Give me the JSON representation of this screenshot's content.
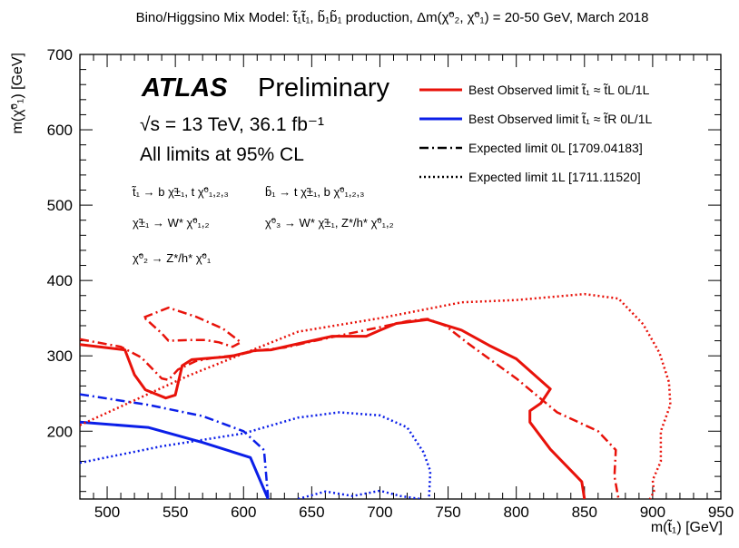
{
  "chart_data": {
    "type": "line",
    "title": "Bino/Higgsino Mix Model: t̃₁t̃₁, b̃₁b̃₁ production, Δm(χ̃⁰₂, χ̃⁰₁) = 20-50 GeV, March 2018",
    "xlabel": "m(t̃₁) [GeV]",
    "ylabel": "m(χ̃⁰₁) [GeV]",
    "xlim": [
      480,
      950
    ],
    "ylim": [
      110,
      700
    ],
    "xticks": [
      500,
      550,
      600,
      650,
      700,
      750,
      800,
      850,
      900,
      950
    ],
    "yticks": [
      200,
      300,
      400,
      500,
      600,
      700
    ],
    "grid": false,
    "legend_position": "top-right",
    "experiment_label": "ATLAS",
    "status_label": "Preliminary",
    "energy_lumi": "√s = 13 TeV, 36.1 fb⁻¹",
    "cl_text": "All limits at 95% CL",
    "decay_lines": [
      "t̃₁ → b χ̃±₁, t χ̃⁰₁,₂,₃",
      "b̃₁ → t χ̃±₁, b χ̃⁰₁,₂,₃",
      "χ̃±₁ → W* χ̃⁰₁,₂",
      "χ̃⁰₃ → W* χ̃±₁, Z*/h* χ̃⁰₁,₂",
      "χ̃⁰₂ → Z*/h* χ̃⁰₁"
    ],
    "series": [
      {
        "name": "Best Observed limit t̃₁ ≈ t̃L 0L/1L",
        "color": "#e8120a",
        "style": "solid",
        "x": [
          480,
          513,
          520,
          528,
          543,
          550,
          555,
          562,
          575,
          590,
          608,
          620,
          640,
          665,
          690,
          700,
          712,
          735,
          760,
          780,
          800,
          825,
          818,
          810,
          810,
          825,
          848,
          850
        ],
        "y": [
          315,
          308,
          275,
          255,
          244,
          248,
          287,
          295,
          297,
          299,
          307,
          308,
          316,
          326,
          326,
          334,
          343,
          348,
          334,
          314,
          296,
          256,
          237,
          227,
          212,
          176,
          133,
          110
        ]
      },
      {
        "name": "Best Observed limit t̃₁ ≈ t̃R 0L/1L",
        "color": "#0b1fe8",
        "style": "solid",
        "x": [
          480,
          530,
          570,
          605,
          618
        ],
        "y": [
          212,
          205,
          185,
          165,
          110
        ]
      },
      {
        "name": "Expected limit 0L [1709.04183]",
        "color": "#e8120a",
        "style": "dashdot",
        "x": [
          480,
          510,
          525,
          540,
          545,
          552,
          565,
          580,
          595,
          610,
          630,
          660,
          700,
          720,
          735,
          748,
          765,
          800,
          830,
          860,
          873,
          872,
          875
        ],
        "y": [
          322,
          312,
          298,
          270,
          268,
          282,
          293,
          298,
          301,
          307,
          311,
          323,
          338,
          346,
          349,
          340,
          316,
          270,
          225,
          200,
          175,
          140,
          110
        ]
      },
      {
        "name": "Expected limit 0L [1709.04183] (island)",
        "color": "#e8120a",
        "style": "dashdot",
        "x": [
          527,
          545,
          565,
          585,
          598,
          592,
          582,
          572,
          560,
          545,
          540,
          527
        ],
        "y": [
          351,
          364,
          352,
          336,
          318,
          312,
          318,
          321,
          321,
          320,
          330,
          351
        ]
      },
      {
        "name": "Expected limit 0L [1709.04183] (blue)",
        "color": "#0b1fe8",
        "style": "dashdot",
        "x": [
          480,
          530,
          570,
          600,
          615,
          618
        ],
        "y": [
          249,
          235,
          220,
          200,
          175,
          112
        ]
      },
      {
        "name": "Expected limit 1L [1711.11520]",
        "color": "#e8120a",
        "style": "dotted",
        "x": [
          480,
          560,
          640,
          700,
          760,
          800,
          850,
          875,
          893,
          905,
          912,
          913,
          906,
          906,
          900,
          901,
          898
        ],
        "y": [
          208,
          274,
          332,
          350,
          371,
          374,
          382,
          376,
          342,
          304,
          265,
          235,
          200,
          160,
          135,
          120,
          110
        ]
      },
      {
        "name": "Expected limit 1L [1711.11520] (blue)",
        "color": "#0b1fe8",
        "style": "dotted",
        "x": [
          480,
          540,
          600,
          640,
          670,
          700,
          720,
          732,
          737,
          736
        ],
        "y": [
          158,
          180,
          197,
          218,
          225,
          221,
          205,
          172,
          147,
          110
        ]
      },
      {
        "name": "Expected limit 1L [1711.11520] (blue, bottom)",
        "color": "#0b1fe8",
        "style": "dotted",
        "x": [
          640,
          660,
          680,
          700,
          715,
          730
        ],
        "y": [
          110,
          120,
          114,
          121,
          114,
          110
        ]
      }
    ]
  },
  "legend": [
    {
      "text": "Best Observed limit t̃₁ ≈ t̃L 0L/1L",
      "color": "#e8120a",
      "style": "solid"
    },
    {
      "text": "Best Observed limit t̃₁ ≈ t̃R 0L/1L",
      "color": "#0b1fe8",
      "style": "solid"
    },
    {
      "text": "Expected limit 0L [1709.04183]",
      "color": "#000000",
      "style": "dashdot"
    },
    {
      "text": "Expected limit 1L [1711.11520]",
      "color": "#000000",
      "style": "dotted"
    }
  ]
}
